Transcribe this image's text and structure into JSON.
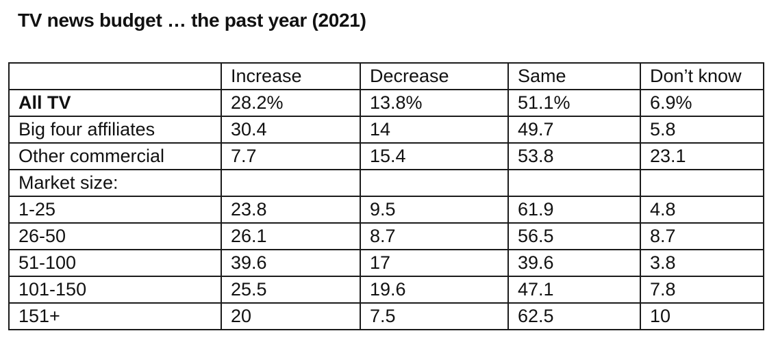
{
  "chart_data": {
    "type": "table",
    "title": "TV news budget … the past year (2021)",
    "columns": [
      "",
      "Increase",
      "Decrease",
      "Same",
      "Don’t know"
    ],
    "rows": [
      {
        "label": "All TV",
        "values": [
          "28.2%",
          "13.8%",
          "51.1%",
          "6.9%"
        ],
        "bold": true
      },
      {
        "label": "Big four affiliates",
        "values": [
          "30.4",
          "14",
          "49.7",
          "5.8"
        ]
      },
      {
        "label": "Other commercial",
        "values": [
          "7.7",
          "15.4",
          "53.8",
          "23.1"
        ]
      },
      {
        "label": "Market size:",
        "values": [
          "",
          "",
          "",
          ""
        ]
      },
      {
        "label": "1-25",
        "values": [
          "23.8",
          "9.5",
          "61.9",
          "4.8"
        ]
      },
      {
        "label": "26-50",
        "values": [
          "26.1",
          "8.7",
          "56.5",
          "8.7"
        ]
      },
      {
        "label": "51-100",
        "values": [
          "39.6",
          "17",
          "39.6",
          "3.8"
        ]
      },
      {
        "label": "101-150",
        "values": [
          "25.5",
          "19.6",
          "47.1",
          "7.8"
        ]
      },
      {
        "label": "151+",
        "values": [
          "20",
          "7.5",
          "62.5",
          "10"
        ]
      }
    ]
  }
}
